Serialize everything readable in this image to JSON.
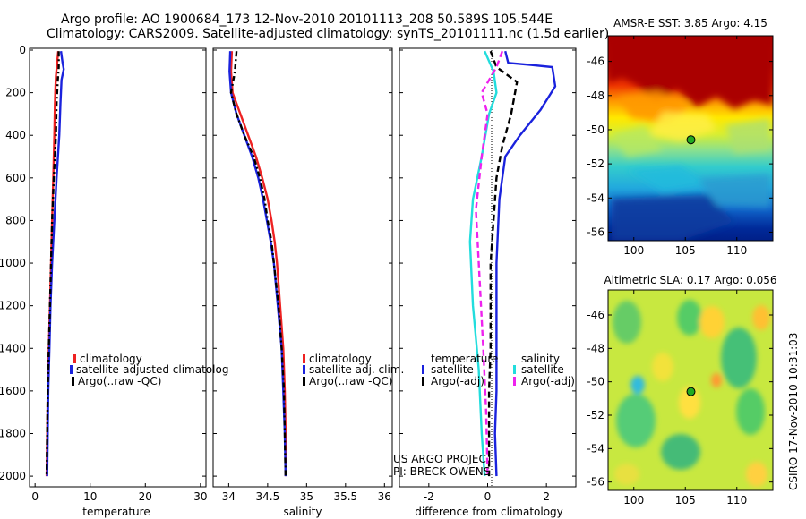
{
  "header": {
    "line1": "Argo profile: AO 1900684_173 12-Nov-2010 20101113_208 50.589S 105.544E",
    "line2": "Climatology: CARS2009. Satellite-adjusted climatology: synTS_20101111.nc (1.5d earlier)"
  },
  "colors": {
    "climatology": "#ee2222",
    "satellite": "#1a22dd",
    "argo": "#000000",
    "sal_satellite": "#22dddd",
    "sal_argo": "#ee22ee"
  },
  "chart_data": [
    {
      "type": "line",
      "panel": "temperature",
      "xlabel": "temperature",
      "xlim": [
        -1,
        31
      ],
      "ylim": [
        2050,
        0
      ],
      "xticks": [
        "0",
        "10",
        "20",
        "30"
      ],
      "yticks": [
        "0",
        "200",
        "400",
        "600",
        "800",
        "1000",
        "1200",
        "1400",
        "1600",
        "1800",
        "2000"
      ],
      "legend": [
        "climatology",
        "satellite-adjusted climatolog",
        "Argo(..raw -QC)"
      ],
      "series": [
        {
          "name": "climatology",
          "color": "#ee2222",
          "dash": "",
          "points": [
            [
              4.2,
              5
            ],
            [
              4.0,
              60
            ],
            [
              3.8,
              120
            ],
            [
              3.7,
              180
            ],
            [
              3.6,
              260
            ],
            [
              3.5,
              400
            ],
            [
              3.3,
              600
            ],
            [
              3.1,
              800
            ],
            [
              2.9,
              1000
            ],
            [
              2.7,
              1200
            ],
            [
              2.5,
              1400
            ],
            [
              2.3,
              1600
            ],
            [
              2.2,
              1800
            ],
            [
              2.1,
              2000
            ]
          ]
        },
        {
          "name": "satellite-adjusted climatolog",
          "color": "#1a22dd",
          "dash": "",
          "points": [
            [
              4.7,
              5
            ],
            [
              5.0,
              60
            ],
            [
              5.2,
              90
            ],
            [
              4.8,
              140
            ],
            [
              4.6,
              250
            ],
            [
              4.4,
              400
            ],
            [
              3.9,
              600
            ],
            [
              3.5,
              800
            ],
            [
              3.1,
              1000
            ],
            [
              2.8,
              1200
            ],
            [
              2.6,
              1400
            ],
            [
              2.4,
              1600
            ],
            [
              2.3,
              1800
            ],
            [
              2.2,
              2000
            ]
          ]
        },
        {
          "name": "Argo(..raw -QC)",
          "color": "#000000",
          "dash": "6,3,2,3",
          "points": [
            [
              4.3,
              5
            ],
            [
              4.3,
              80
            ],
            [
              4.1,
              150
            ],
            [
              3.9,
              250
            ],
            [
              3.8,
              400
            ],
            [
              3.4,
              600
            ],
            [
              3.1,
              800
            ],
            [
              2.9,
              1000
            ],
            [
              2.7,
              1200
            ],
            [
              2.5,
              1400
            ],
            [
              2.3,
              1600
            ],
            [
              2.2,
              1800
            ],
            [
              2.1,
              2000
            ]
          ]
        }
      ]
    },
    {
      "type": "line",
      "panel": "salinity",
      "xlabel": "salinity",
      "xlim": [
        33.8,
        36.1
      ],
      "ylim": [
        2050,
        0
      ],
      "xticks": [
        "34",
        "34.5",
        "35",
        "35.5",
        "36"
      ],
      "legend": [
        "climatology",
        "satellite adj. clim.",
        "Argo(..raw -QC)"
      ],
      "series": [
        {
          "name": "climatology",
          "color": "#ee2222",
          "dash": "",
          "points": [
            [
              34.04,
              5
            ],
            [
              34.03,
              100
            ],
            [
              34.05,
              200
            ],
            [
              34.15,
              300
            ],
            [
              34.25,
              400
            ],
            [
              34.35,
              500
            ],
            [
              34.43,
              600
            ],
            [
              34.5,
              700
            ],
            [
              34.55,
              800
            ],
            [
              34.59,
              900
            ],
            [
              34.62,
              1000
            ],
            [
              34.66,
              1200
            ],
            [
              34.7,
              1400
            ],
            [
              34.72,
              1600
            ],
            [
              34.73,
              1800
            ],
            [
              34.73,
              2000
            ]
          ]
        },
        {
          "name": "satellite adj. clim.",
          "color": "#1a22dd",
          "dash": "",
          "points": [
            [
              34.02,
              5
            ],
            [
              34.01,
              100
            ],
            [
              34.03,
              200
            ],
            [
              34.1,
              300
            ],
            [
              34.2,
              400
            ],
            [
              34.3,
              500
            ],
            [
              34.38,
              600
            ],
            [
              34.44,
              700
            ],
            [
              34.49,
              800
            ],
            [
              34.54,
              900
            ],
            [
              34.58,
              1000
            ],
            [
              34.63,
              1200
            ],
            [
              34.68,
              1400
            ],
            [
              34.7,
              1600
            ],
            [
              34.72,
              1800
            ],
            [
              34.73,
              2000
            ]
          ]
        },
        {
          "name": "Argo(..raw -QC)",
          "color": "#000000",
          "dash": "6,3,2,3",
          "points": [
            [
              34.1,
              5
            ],
            [
              34.08,
              100
            ],
            [
              34.03,
              200
            ],
            [
              34.1,
              300
            ],
            [
              34.2,
              400
            ],
            [
              34.32,
              500
            ],
            [
              34.4,
              600
            ],
            [
              34.46,
              700
            ],
            [
              34.5,
              800
            ],
            [
              34.55,
              900
            ],
            [
              34.58,
              1000
            ],
            [
              34.64,
              1200
            ],
            [
              34.68,
              1400
            ],
            [
              34.71,
              1600
            ],
            [
              34.72,
              1800
            ],
            [
              34.73,
              2000
            ]
          ]
        }
      ]
    },
    {
      "type": "line",
      "panel": "difference",
      "xlabel": "difference from climatology",
      "xlim": [
        -3,
        3
      ],
      "ylim": [
        2050,
        0
      ],
      "xticks": [
        "-2",
        "0",
        "2"
      ],
      "legend_temperature": {
        "title": "temperature",
        "items": [
          "satellite",
          "Argo(-adj)"
        ]
      },
      "legend_salinity": {
        "title": "salinity",
        "items": [
          "satellite",
          "Argo(-adj)"
        ]
      },
      "series": [
        {
          "name": "satellite",
          "group": "temperature",
          "color": "#1a22dd",
          "dash": "",
          "points": [
            [
              0.6,
              5
            ],
            [
              0.7,
              60
            ],
            [
              1.5,
              70
            ],
            [
              2.2,
              80
            ],
            [
              2.3,
              170
            ],
            [
              1.8,
              280
            ],
            [
              1.1,
              400
            ],
            [
              0.6,
              500
            ],
            [
              0.4,
              700
            ],
            [
              0.3,
              1000
            ],
            [
              0.3,
              1400
            ],
            [
              0.3,
              1600
            ],
            [
              0.25,
              1800
            ],
            [
              0.3,
              2000
            ]
          ]
        },
        {
          "name": "Argo(-adj)",
          "group": "temperature",
          "color": "#000000",
          "dash": "7,4",
          "points": [
            [
              0.1,
              5
            ],
            [
              0.3,
              80
            ],
            [
              1.0,
              150
            ],
            [
              0.8,
              300
            ],
            [
              0.5,
              450
            ],
            [
              0.3,
              600
            ],
            [
              0.2,
              800
            ],
            [
              0.1,
              1000
            ],
            [
              0.1,
              1400
            ],
            [
              0.05,
              1600
            ],
            [
              0.05,
              1800
            ],
            [
              0.05,
              2000
            ]
          ]
        },
        {
          "name": "satellite",
          "group": "salinity",
          "color": "#22dddd",
          "dash": "",
          "points": [
            [
              -0.1,
              5
            ],
            [
              0.2,
              100
            ],
            [
              0.3,
              200
            ],
            [
              0.05,
              300
            ],
            [
              -0.2,
              500
            ],
            [
              -0.5,
              700
            ],
            [
              -0.6,
              900
            ],
            [
              -0.5,
              1200
            ],
            [
              -0.3,
              1500
            ],
            [
              -0.2,
              1800
            ],
            [
              -0.1,
              2000
            ]
          ]
        },
        {
          "name": "Argo(-adj)",
          "group": "salinity",
          "color": "#ee22ee",
          "dash": "7,4",
          "points": [
            [
              0.5,
              5
            ],
            [
              0.3,
              80
            ],
            [
              -0.2,
              200
            ],
            [
              0.0,
              300
            ],
            [
              -0.2,
              500
            ],
            [
              -0.4,
              750
            ],
            [
              -0.3,
              1000
            ],
            [
              -0.15,
              1400
            ],
            [
              -0.05,
              1700
            ],
            [
              0.0,
              2000
            ]
          ]
        }
      ],
      "annotation": [
        "US ARGO PROJECT",
        "PI: BRECK OWENS"
      ]
    },
    {
      "type": "heatmap",
      "panel": "sst_map",
      "title": "AMSR-E SST: 3.85 Argo: 4.15",
      "xlim": [
        97.5,
        113.5
      ],
      "ylim": [
        -56.5,
        -44.5
      ],
      "xticks": [
        "100",
        "105",
        "110"
      ],
      "yticks": [
        "-46",
        "-48",
        "-50",
        "-52",
        "-54",
        "-56"
      ],
      "marker": {
        "lon": 105.544,
        "lat": -50.589
      }
    },
    {
      "type": "heatmap",
      "panel": "sla_map",
      "title": "Altimetric SLA: 0.17 Argo: 0.056",
      "xlim": [
        97.5,
        113.5
      ],
      "ylim": [
        -56.5,
        -44.5
      ],
      "xticks": [
        "100",
        "105",
        "110"
      ],
      "yticks": [
        "-46",
        "-48",
        "-50",
        "-52",
        "-54",
        "-56"
      ],
      "marker": {
        "lon": 105.544,
        "lat": -50.589
      }
    }
  ],
  "footer": {
    "stamp": "CSIRO 17-Nov-2010 10:31:03"
  }
}
